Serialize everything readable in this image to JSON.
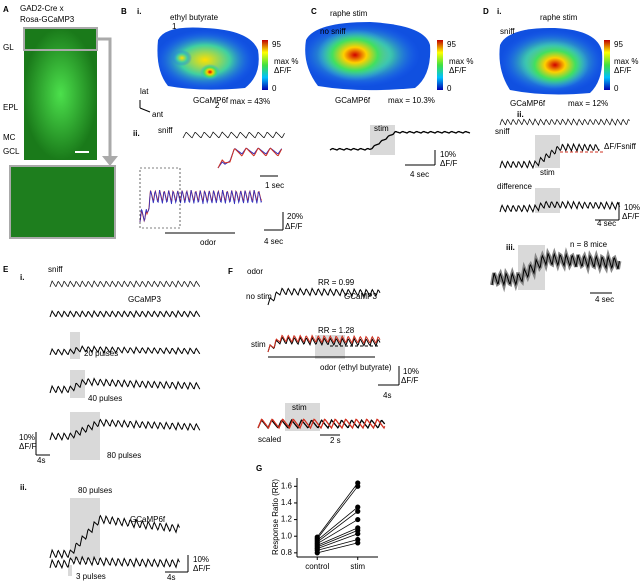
{
  "A": {
    "label": "A",
    "title": [
      "GAD2-Cre x",
      "Rosa-GCaMP3"
    ],
    "layers": [
      "GL",
      "EPL",
      "MC",
      "GCL"
    ]
  },
  "B": {
    "label": "B",
    "sub_i": "i.",
    "odor_name": "ethyl butyrate",
    "rois": [
      "1",
      "2"
    ],
    "colorbar": {
      "max": "95",
      "min": "0",
      "unit": [
        "max %",
        "ΔF/F"
      ]
    },
    "indicator": "GCaMP6f",
    "max": "max = 43%",
    "axes": [
      "lat",
      "ant"
    ],
    "sub_ii": "ii.",
    "sniff": "sniff",
    "inset_scale": "1 sec",
    "scale_y": [
      "20%",
      "ΔF/F"
    ],
    "odor": "odor",
    "scale_x": "4 sec"
  },
  "C": {
    "label": "C",
    "title": "raphe stim",
    "condition": "no sniff",
    "colorbar": {
      "max": "95",
      "min": "0",
      "unit": [
        "max %",
        "ΔF/F"
      ]
    },
    "indicator": "GCaMP6f",
    "max": "max = 10.3%",
    "stim": "stim",
    "scale_y": [
      "10%",
      "ΔF/F"
    ],
    "scale_x": "4 sec"
  },
  "D": {
    "label": "D",
    "sub_i": "i.",
    "title": "raphe stim",
    "condition": "sniff",
    "colorbar": {
      "max": "95",
      "min": "0",
      "unit": [
        "max %",
        "ΔF/F"
      ]
    },
    "indicator": "GCaMP6f",
    "max": "max = 12%",
    "sub_ii": "ii.",
    "sniff": "sniff",
    "dff_sniff": "ΔF/Fsniff",
    "stim": "stim",
    "difference": "difference",
    "scale_y": [
      "10%",
      "ΔF/F"
    ],
    "scale_x": "4 sec",
    "sub_iii": "iii.",
    "n": "n = 8 mice",
    "scale_x2": "4 sec"
  },
  "E": {
    "label": "E",
    "sub_i": "i.",
    "sniff": "sniff",
    "indicator": "GCaMP3",
    "pulses": [
      "20 pulses",
      "40 pulses",
      "80 pulses"
    ],
    "scale_y": [
      "10%",
      "ΔF/F"
    ],
    "scale_x": "4s",
    "sub_ii": "ii.",
    "pulses_ii": [
      "80 pulses",
      "3 pulses"
    ],
    "indicator_ii": "GCaMP6f",
    "scale_y_ii": [
      "10%",
      "ΔF/F"
    ],
    "scale_x_ii": "4s"
  },
  "F": {
    "label": "F",
    "odor": "odor",
    "rr_no_stim": "RR = 0.99",
    "indicator": "GCaMP3",
    "no_stim": "no stim",
    "rr_stim": "RR = 1.28",
    "stim": "stim",
    "odor_line": "odor (ethyl butyrate)",
    "scale_y": [
      "10%",
      "ΔF/F"
    ],
    "scale_x": "4s",
    "stim2": "stim",
    "scaled": "scaled",
    "scale_x2": "2 s"
  },
  "chart_data": {
    "type": "paired-scatter",
    "label": "G",
    "ylabel": "Response Ratio (RR)",
    "categories": [
      "control",
      "stim"
    ],
    "values": [
      [
        0.99,
        0.97,
        0.95,
        0.93,
        0.91,
        0.89,
        0.87,
        0.85,
        0.83,
        0.8
      ],
      [
        1.64,
        1.6,
        1.35,
        1.3,
        1.2,
        1.1,
        1.07,
        1.03,
        0.96,
        0.92
      ]
    ],
    "ylim": [
      0.75,
      1.7
    ],
    "yticks": [
      0.8,
      {
        "value": 1,
        "label": "1.0"
      },
      1.2,
      1.4,
      1.6
    ]
  }
}
